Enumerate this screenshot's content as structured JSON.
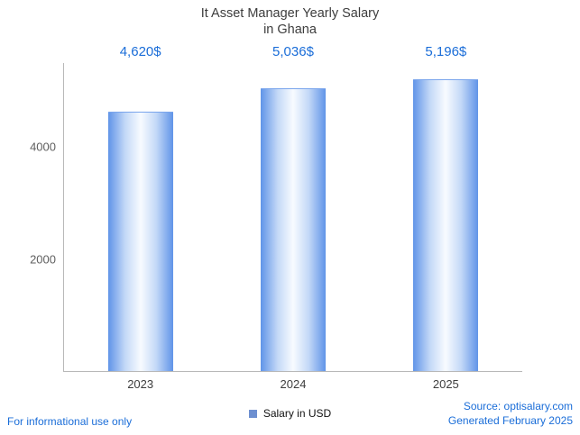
{
  "title": {
    "line1": "It Asset Manager Yearly Salary",
    "line2": "in Ghana"
  },
  "chart_data": {
    "type": "bar",
    "title": "It Asset Manager Yearly Salary in Ghana",
    "categories": [
      "2023",
      "2024",
      "2025"
    ],
    "values": [
      4620,
      5036,
      5196
    ],
    "value_labels": [
      "4,620$",
      "5,036$",
      "5,196$"
    ],
    "series_name": "Salary in USD",
    "xlabel": "",
    "ylabel": "",
    "ylim": [
      0,
      5500
    ],
    "yticks": [
      2000,
      4000
    ],
    "grid": false,
    "legend_position": "bottom-center",
    "bar_style": "horizontal gradient, blue edges to white center",
    "bar_edge_color": "#6094e8",
    "value_label_color": "#1a6dd8"
  },
  "legend": {
    "label": "Salary in USD",
    "swatch_color": "#6d8fd0"
  },
  "footer": {
    "disclaimer": "For informational use only",
    "source": "Source: optisalary.com",
    "generated": "Generated February 2025"
  },
  "colors": {
    "accent_blue": "#1a6dd8",
    "axis_gray": "#b8b8b8",
    "text_dark": "#3d3d3d"
  }
}
